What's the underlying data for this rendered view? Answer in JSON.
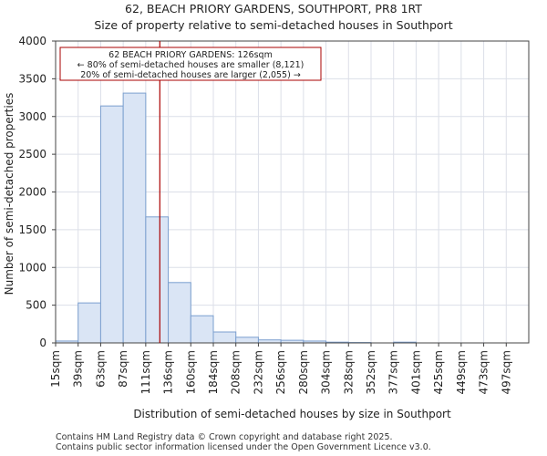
{
  "chart_data": {
    "type": "bar",
    "title": "62, BEACH PRIORY GARDENS, SOUTHPORT, PR8 1RT",
    "subtitle": "Size of property relative to semi-detached houses in Southport",
    "xlabel": "Distribution of semi-detached houses by size in Southport",
    "ylabel": "Number of semi-detached properties",
    "ylim": [
      0,
      4000
    ],
    "yticks": [
      0,
      500,
      1000,
      1500,
      2000,
      2500,
      3000,
      3500,
      4000
    ],
    "grid": true,
    "categories": [
      "15sqm",
      "39sqm",
      "63sqm",
      "87sqm",
      "111sqm",
      "136sqm",
      "160sqm",
      "184sqm",
      "208sqm",
      "232sqm",
      "256sqm",
      "280sqm",
      "304sqm",
      "328sqm",
      "352sqm",
      "377sqm",
      "401sqm",
      "425sqm",
      "449sqm",
      "473sqm",
      "497sqm"
    ],
    "values": [
      25,
      530,
      3140,
      3310,
      1670,
      800,
      360,
      145,
      75,
      40,
      35,
      25,
      10,
      5,
      0,
      10,
      0,
      0,
      0,
      0,
      0
    ],
    "marker": {
      "value": 126,
      "unit": "sqm"
    },
    "annotation": {
      "line1": "62 BEACH PRIORY GARDENS: 126sqm",
      "line2": "← 80% of semi-detached houses are smaller (8,121)",
      "line3": "20% of semi-detached houses are larger (2,055) →"
    }
  },
  "colors": {
    "bar_fill": "#dae5f5",
    "bar_edge": "#7b9fcf",
    "marker": "#aa0000",
    "grid": "#dcdfe8"
  },
  "footer": {
    "line1": "Contains HM Land Registry data © Crown copyright and database right 2025.",
    "line2": "Contains public sector information licensed under the Open Government Licence v3.0."
  }
}
